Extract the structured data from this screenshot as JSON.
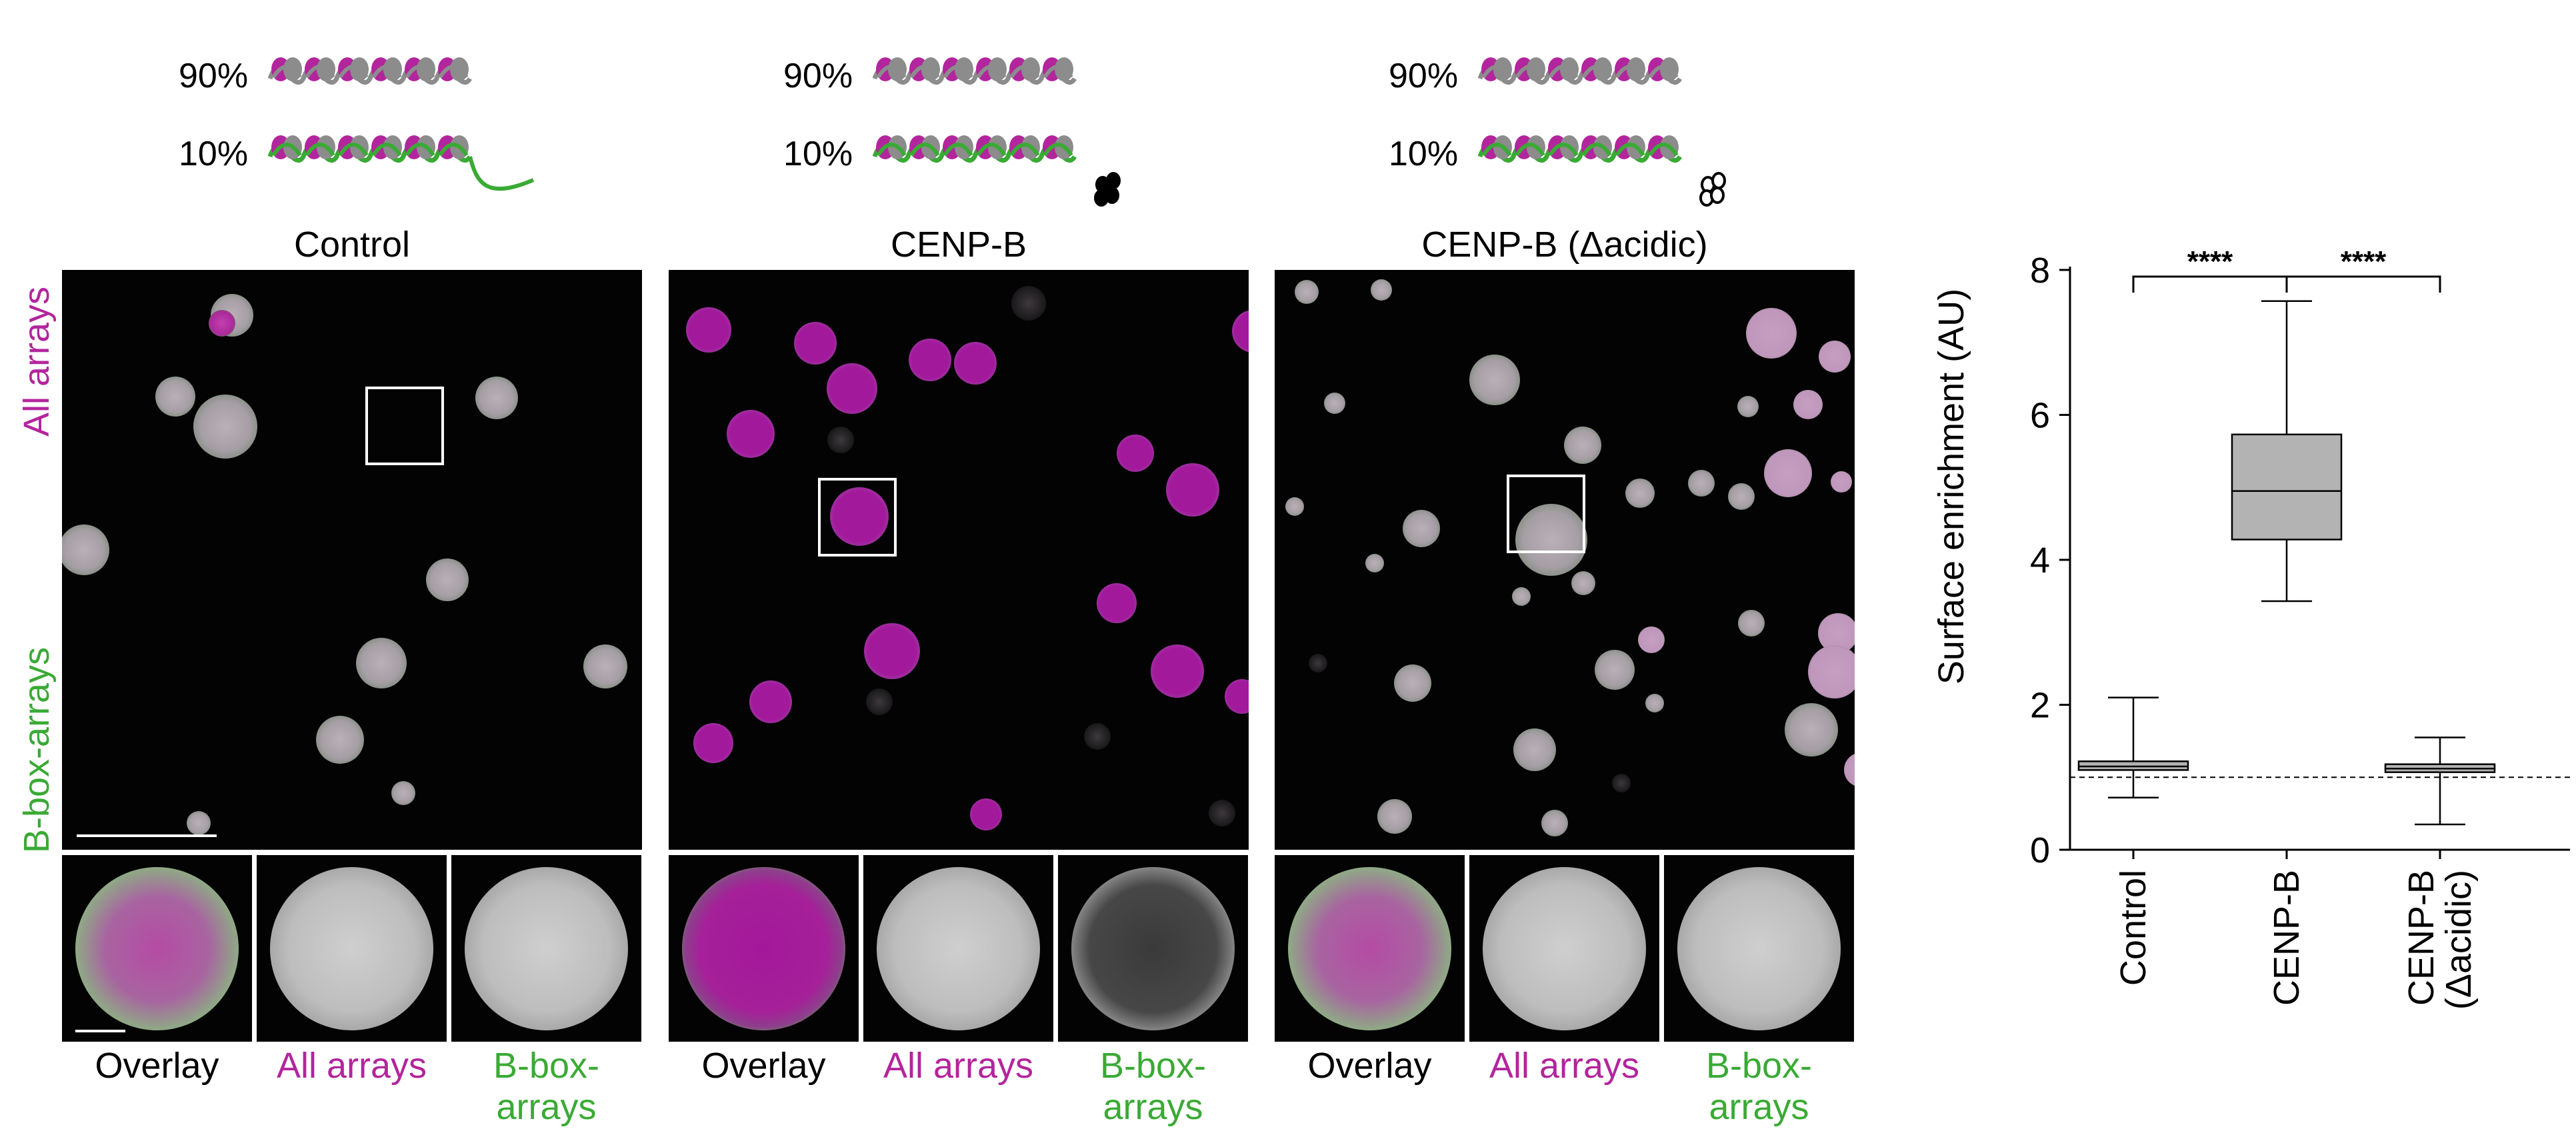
{
  "figure": {
    "side_labels": {
      "all_arrays": "All arrays",
      "bbox_arrays": "B-box-arrays"
    },
    "panels": [
      {
        "key": "control",
        "title": "Control",
        "pct_top": "90%",
        "pct_bottom": "10%",
        "insets": {
          "overlay": "Overlay",
          "all": "All arrays",
          "bbox_line1": "B-box-",
          "bbox_line2": "arrays"
        }
      },
      {
        "key": "cenpb",
        "title": "CENP-B",
        "pct_top": "90%",
        "pct_bottom": "10%",
        "insets": {
          "overlay": "Overlay",
          "all": "All arrays",
          "bbox_line1": "B-box-",
          "bbox_line2": "arrays"
        }
      },
      {
        "key": "dacidic",
        "title": "CENP-B (Δacidic)",
        "pct_top": "90%",
        "pct_bottom": "10%",
        "insets": {
          "overlay": "Overlay",
          "all": "All arrays",
          "bbox_line1": "B-box-",
          "bbox_line2": "arrays"
        }
      }
    ],
    "colors": {
      "magenta": "#b3259d",
      "green": "#3aaa35",
      "gray": "#8c8c8c",
      "box_fill": "#b3b3b3"
    }
  },
  "chart_data": {
    "type": "box",
    "ylabel": "Surface enrichment (AU)",
    "ylim": [
      0,
      8
    ],
    "yticks": [
      "0",
      "2",
      "4",
      "6",
      "8"
    ],
    "categories": [
      "Control",
      "CENP-B",
      "CENP-B (Δacidic)"
    ],
    "xtick_lines": [
      [
        "Control"
      ],
      [
        "CENP-B"
      ],
      [
        "CENP-B",
        "(Δacidic)"
      ]
    ],
    "boxes": [
      {
        "category": "Control",
        "min": 0.72,
        "q1": 1.1,
        "median": 1.15,
        "q3": 1.22,
        "max": 2.1
      },
      {
        "category": "CENP-B",
        "min": 3.43,
        "q1": 4.28,
        "median": 4.95,
        "q3": 5.73,
        "max": 7.57
      },
      {
        "category": "CENP-B (Δacidic)",
        "min": 0.35,
        "q1": 1.07,
        "median": 1.12,
        "q3": 1.18,
        "max": 1.55
      }
    ],
    "reference_line": 1.0,
    "significance": [
      {
        "from": "Control",
        "to": "CENP-B",
        "label": "****"
      },
      {
        "from": "CENP-B",
        "to": "CENP-B (Δacidic)",
        "label": "****"
      }
    ]
  }
}
